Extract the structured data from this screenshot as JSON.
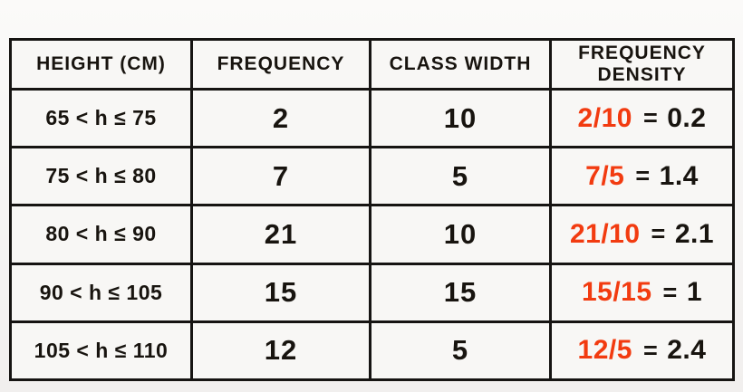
{
  "colors": {
    "accent_orange": "#f23b10",
    "ink_black": "#18140f",
    "cell_bg": "#f8f7f5"
  },
  "table": {
    "headers": {
      "height": "HEIGHT (CM)",
      "frequency": "FREQUENCY",
      "class_width": "CLASS WIDTH",
      "frequency_density": "FREQUENCY DENSITY"
    },
    "rows": [
      {
        "range": "65 < h ≤ 75",
        "frequency": "2",
        "class_width": "10",
        "fraction": "2/10",
        "equals": "=",
        "result": "0.2"
      },
      {
        "range": "75 < h ≤ 80",
        "frequency": "7",
        "class_width": "5",
        "fraction": "7/5",
        "equals": "=",
        "result": "1.4"
      },
      {
        "range": "80 < h ≤ 90",
        "frequency": "21",
        "class_width": "10",
        "fraction": "21/10",
        "equals": "=",
        "result": "2.1"
      },
      {
        "range": "90 < h ≤ 105",
        "frequency": "15",
        "class_width": "15",
        "fraction": "15/15",
        "equals": "=",
        "result": "1"
      },
      {
        "range": "105 < h ≤ 110",
        "frequency": "12",
        "class_width": "5",
        "fraction": "12/5",
        "equals": "=",
        "result": "2.4"
      }
    ]
  }
}
